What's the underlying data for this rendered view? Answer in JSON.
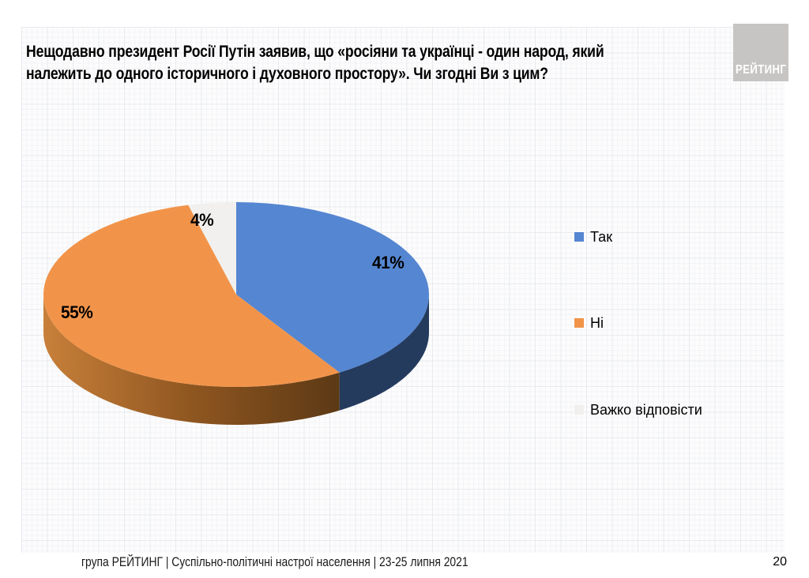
{
  "slide": {
    "title_line1": "Нещодавно президент Росії Путін заявив, що «росіяни та українці - один народ, який",
    "title_line2": "належить до одного історичного і духовного простору». Чи згодні Ви з цим?",
    "logo_text": "РЕЙТИНГ",
    "footer_text": "група РЕЙТИНГ | Суспільно-політичні настрої населення  | 23-25 липня 2021",
    "page_number": "20"
  },
  "chart_data": {
    "type": "pie",
    "is_3d": true,
    "title": "Нещодавно президент Росії Путін заявив, що «росіяни та українці - один народ, який належить до одного історичного і духовного простору». Чи згодні Ви з цим?",
    "categories": [
      "Так",
      "Ні",
      "Важко відповісти"
    ],
    "values": [
      41,
      55,
      4
    ],
    "labels": [
      "41%",
      "55%",
      "4%"
    ],
    "colors": [
      "#5586D1",
      "#F1944A",
      "#F1F0EE"
    ],
    "side_colors": [
      "#243B5E",
      [
        "#C8803A",
        "#8F5620",
        "#5C3915"
      ],
      "#DEDDDB"
    ],
    "start_angle_deg": 0,
    "direction": "clockwise",
    "legend_position": "right"
  }
}
